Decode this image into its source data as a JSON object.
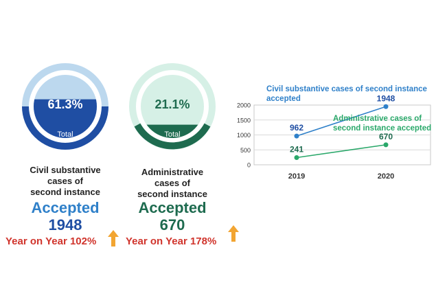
{
  "colors": {
    "civil_blue": "#1f4ea3",
    "civil_light": "#bcd8ee",
    "admin_green": "#1e6b4f",
    "admin_light": "#d6f0e6",
    "red": "#d0342c",
    "arrow": "#f2a532",
    "chart_blue": "#2f80c9",
    "chart_green": "#2aa86a"
  },
  "panels": [
    {
      "percent": "61.3%",
      "percent_value": 0.613,
      "total_label": "Total",
      "title": "Civil substantive\ncases of\nsecond instance",
      "accepted_label": "Accepted",
      "accepted_value": "1948",
      "yoy_text": "Year on Year 102%",
      "arrow_icon": "up-arrow-icon"
    },
    {
      "percent": "21.1%",
      "percent_value": 0.211,
      "total_label": "Total",
      "title": "Administrative\ncases of\nsecond instance",
      "accepted_label": "Accepted",
      "accepted_value": "670",
      "yoy_text": "Year on Year 178%",
      "arrow_icon": "up-arrow-icon"
    }
  ],
  "chart_data": {
    "type": "line",
    "categories": [
      "2019",
      "2020"
    ],
    "series": [
      {
        "name": "Civil substantive cases of second instance accepted",
        "values": [
          962,
          1948
        ],
        "labels": [
          "962",
          "1948"
        ]
      },
      {
        "name": "Administrative cases of second instance accepted",
        "values": [
          241,
          670
        ],
        "labels": [
          "241",
          "670"
        ]
      }
    ],
    "ylim": [
      0,
      2000
    ],
    "yticks": [
      "0",
      "500",
      "1000",
      "1500",
      "2000"
    ],
    "ytick_values": [
      0,
      500,
      1000,
      1500,
      2000
    ],
    "legend_civil_line1": "Civil substantive cases of second instance",
    "legend_civil_line2": "accepted",
    "legend_admin_line1": "Administrative cases of",
    "legend_admin_line2": "second instance accepted",
    "grid": true,
    "title": "",
    "xlabel": "",
    "ylabel": ""
  }
}
